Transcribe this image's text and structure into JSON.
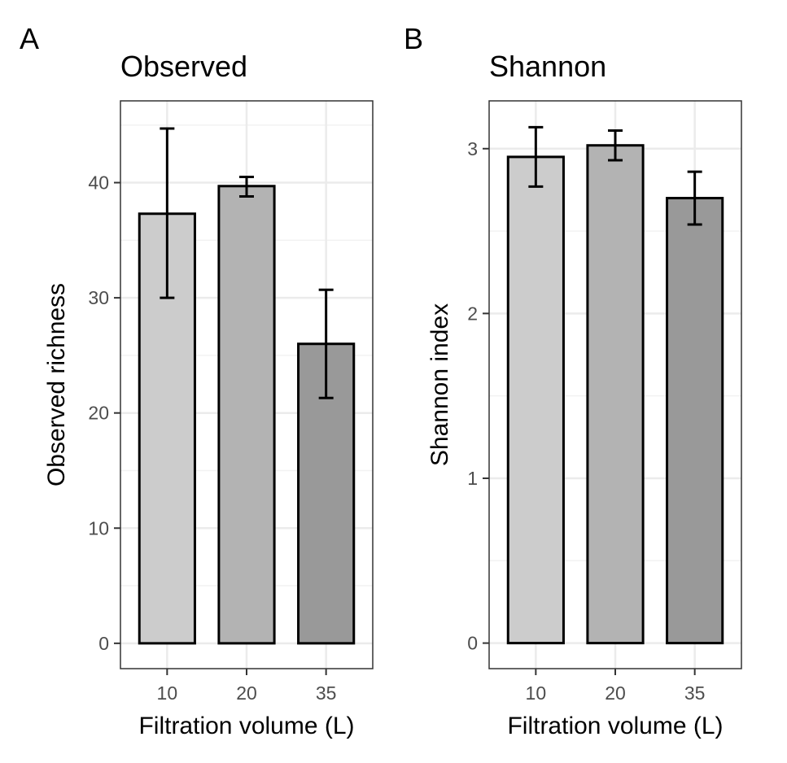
{
  "chart_data": [
    {
      "type": "bar",
      "panel_letter": "A",
      "title": "Observed",
      "xlabel": "Filtration volume (L)",
      "ylabel": "Observed richness",
      "categories": [
        "10",
        "20",
        "35"
      ],
      "values": [
        37.3,
        39.7,
        26.0
      ],
      "error_low": [
        30.0,
        38.8,
        21.3
      ],
      "error_high": [
        44.7,
        40.5,
        30.7
      ],
      "fill_colors": [
        "#cccccc",
        "#b3b3b3",
        "#999999"
      ],
      "yticks": [
        0,
        10,
        20,
        30,
        40
      ],
      "ylim": [
        -2.2,
        47.1
      ],
      "grid": true,
      "legend": "none"
    },
    {
      "type": "bar",
      "panel_letter": "B",
      "title": "Shannon",
      "xlabel": "Filtration volume (L)",
      "ylabel": "Shannon index",
      "categories": [
        "10",
        "20",
        "35"
      ],
      "values": [
        2.95,
        3.02,
        2.7
      ],
      "error_low": [
        2.77,
        2.93,
        2.54
      ],
      "error_high": [
        3.13,
        3.11,
        2.86
      ],
      "fill_colors": [
        "#cccccc",
        "#b3b3b3",
        "#999999"
      ],
      "yticks": [
        0,
        1,
        2,
        3
      ],
      "ylim": [
        -0.155,
        3.29
      ],
      "grid": true,
      "legend": "none"
    }
  ]
}
